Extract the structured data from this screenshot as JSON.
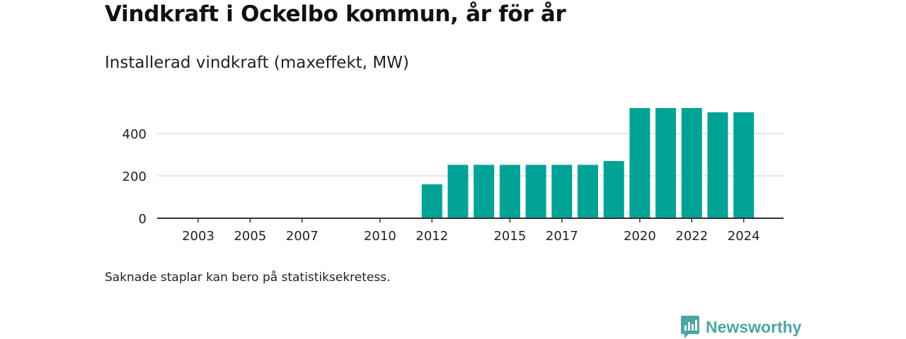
{
  "chart_data": {
    "type": "bar",
    "title": "Vindkraft i Ockelbo kommun, år för år",
    "subtitle": "Installerad vindkraft (maxeffekt, MW)",
    "categories": [
      "2003",
      "2004",
      "2005",
      "2006",
      "2007",
      "2008",
      "2009",
      "2010",
      "2011",
      "2012",
      "2013",
      "2014",
      "2015",
      "2016",
      "2017",
      "2018",
      "2019",
      "2020",
      "2021",
      "2022",
      "2023",
      "2024"
    ],
    "values": [
      0,
      0,
      0,
      0,
      0,
      0,
      0,
      0,
      0,
      160,
      252,
      252,
      252,
      252,
      252,
      252,
      270,
      520,
      520,
      520,
      500,
      500
    ],
    "x_tick_labels": [
      "2003",
      "2005",
      "2007",
      "2010",
      "2012",
      "2015",
      "2017",
      "2020",
      "2022",
      "2024"
    ],
    "y_ticks": [
      0,
      200,
      400
    ],
    "ylim": [
      0,
      540
    ],
    "xlabel": "",
    "ylabel": "",
    "grid": true,
    "bar_color": "#00a396"
  },
  "footnote": "Saknade staplar kan bero på statistiksekretess.",
  "brand": {
    "name": "Newsworthy",
    "icon": "newsworthy-logo-icon",
    "color": "#4aa7a0"
  }
}
